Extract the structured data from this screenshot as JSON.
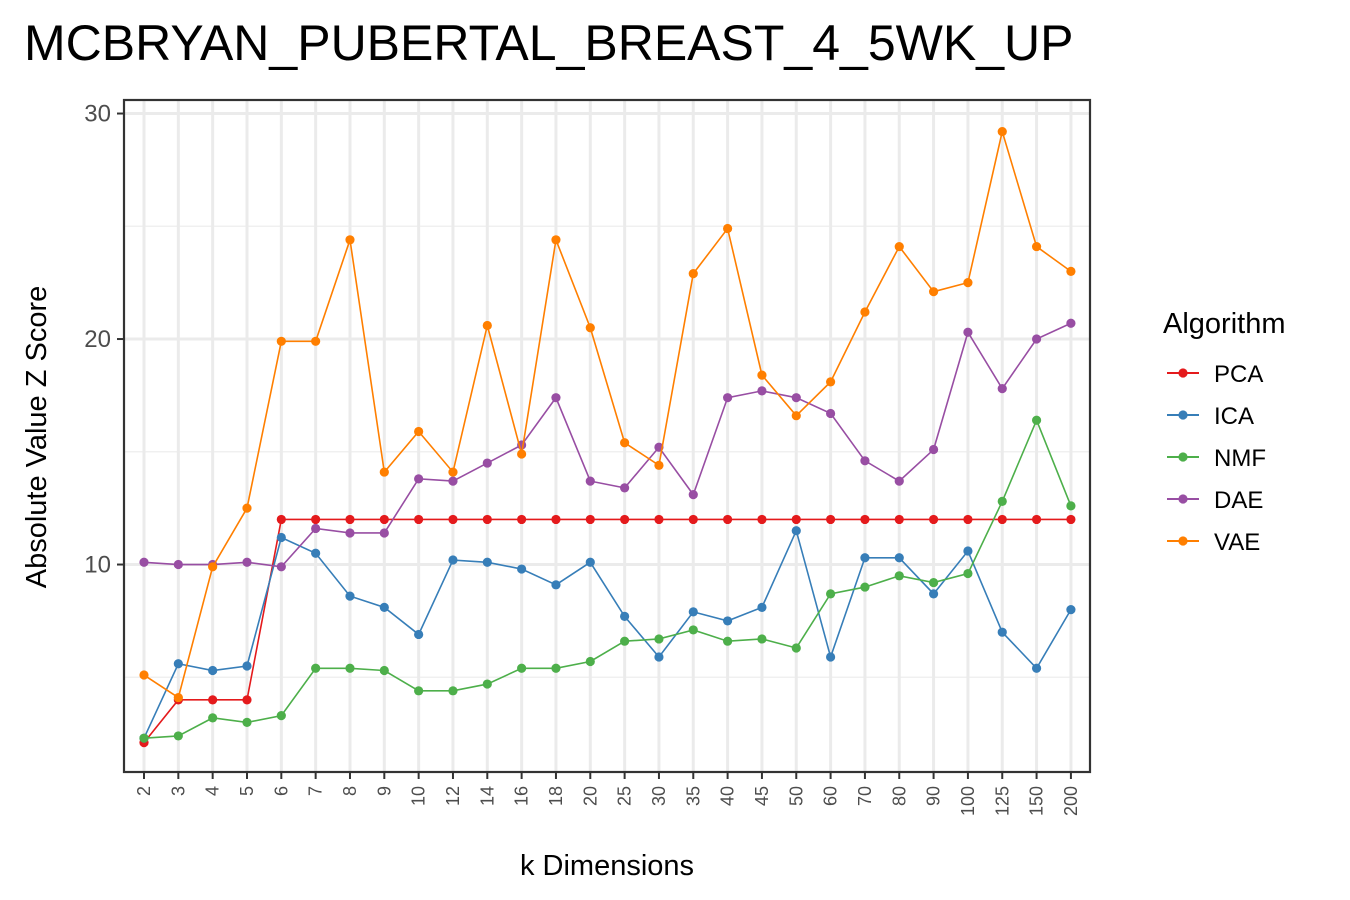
{
  "chart_data": {
    "type": "line",
    "title": "MCBRYAN_PUBERTAL_BREAST_4_5WK_UP",
    "xlabel": "k Dimensions",
    "ylabel": "Absolute Value Z Score",
    "categories": [
      "2",
      "3",
      "4",
      "5",
      "6",
      "7",
      "8",
      "9",
      "10",
      "12",
      "14",
      "16",
      "18",
      "20",
      "25",
      "30",
      "35",
      "40",
      "45",
      "50",
      "60",
      "70",
      "80",
      "90",
      "100",
      "125",
      "150",
      "200"
    ],
    "ylim": [
      0.8,
      30.6
    ],
    "yticks": [
      10,
      20,
      30
    ],
    "grid": true,
    "legend": {
      "title": "Algorithm",
      "position": "right"
    },
    "series": [
      {
        "name": "PCA",
        "color": "#e41a1c",
        "values": [
          2.1,
          4.0,
          4.0,
          4.0,
          12.0,
          12.0,
          12.0,
          12.0,
          12.0,
          12.0,
          12.0,
          12.0,
          12.0,
          12.0,
          12.0,
          12.0,
          12.0,
          12.0,
          12.0,
          12.0,
          12.0,
          12.0,
          12.0,
          12.0,
          12.0,
          12.0,
          12.0,
          12.0
        ]
      },
      {
        "name": "ICA",
        "color": "#377eb8",
        "values": [
          2.3,
          5.6,
          5.3,
          5.5,
          11.2,
          10.5,
          8.6,
          8.1,
          6.9,
          10.2,
          10.1,
          9.8,
          9.1,
          10.1,
          7.7,
          5.9,
          7.9,
          7.5,
          8.1,
          11.5,
          5.9,
          10.3,
          10.3,
          8.7,
          10.6,
          7.0,
          5.4,
          8.0
        ]
      },
      {
        "name": "NMF",
        "color": "#4daf4a",
        "values": [
          2.3,
          2.4,
          3.2,
          3.0,
          3.3,
          5.4,
          5.4,
          5.3,
          4.4,
          4.4,
          4.7,
          5.4,
          5.4,
          5.7,
          6.6,
          6.7,
          7.1,
          6.6,
          6.7,
          6.3,
          8.7,
          9.0,
          9.5,
          9.2,
          9.6,
          12.8,
          16.4,
          12.6
        ]
      },
      {
        "name": "DAE",
        "color": "#984ea3",
        "values": [
          10.1,
          10.0,
          10.0,
          10.1,
          9.9,
          11.6,
          11.4,
          11.4,
          13.8,
          13.7,
          14.5,
          15.3,
          17.4,
          13.7,
          13.4,
          15.2,
          13.1,
          17.4,
          17.7,
          17.4,
          16.7,
          14.6,
          13.7,
          15.1,
          20.3,
          17.8,
          20.0,
          20.7
        ]
      },
      {
        "name": "VAE",
        "color": "#ff7f00",
        "values": [
          5.1,
          4.1,
          9.9,
          12.5,
          19.9,
          19.9,
          24.4,
          14.1,
          15.9,
          14.1,
          20.6,
          14.9,
          24.4,
          20.5,
          15.4,
          14.4,
          22.9,
          24.9,
          18.4,
          16.6,
          18.1,
          21.2,
          24.1,
          22.1,
          22.5,
          29.2,
          24.1,
          23.0
        ]
      }
    ]
  }
}
